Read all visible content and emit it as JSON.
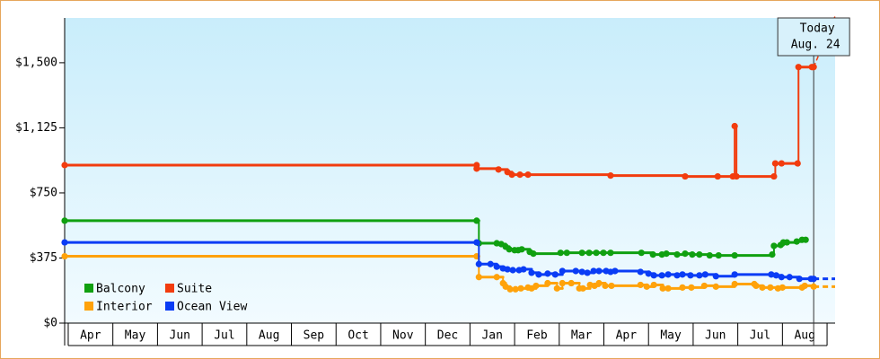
{
  "chart_data": {
    "type": "step",
    "xlim": [
      -0.08,
      17.18
    ],
    "ylim": [
      0,
      1758
    ],
    "yticks": [
      {
        "value": 0,
        "label": "$0"
      },
      {
        "value": 375,
        "label": "$375"
      },
      {
        "value": 750,
        "label": "$750"
      },
      {
        "value": 1125,
        "label": "$1,125"
      },
      {
        "value": 1500,
        "label": "$1,500"
      }
    ],
    "xticks": [
      {
        "value": 0.5,
        "label": "Apr"
      },
      {
        "value": 1.5,
        "label": "May"
      },
      {
        "value": 2.5,
        "label": "Jun"
      },
      {
        "value": 3.5,
        "label": "Jul"
      },
      {
        "value": 4.5,
        "label": "Aug"
      },
      {
        "value": 5.5,
        "label": "Sep"
      },
      {
        "value": 6.5,
        "label": "Oct"
      },
      {
        "value": 7.5,
        "label": "Nov"
      },
      {
        "value": 8.5,
        "label": "Dec"
      },
      {
        "value": 9.5,
        "label": "Jan"
      },
      {
        "value": 10.5,
        "label": "Feb"
      },
      {
        "value": 11.5,
        "label": "Mar"
      },
      {
        "value": 12.5,
        "label": "Apr"
      },
      {
        "value": 13.5,
        "label": "May"
      },
      {
        "value": 14.5,
        "label": "Jun"
      },
      {
        "value": 15.5,
        "label": "Jul"
      },
      {
        "value": 16.5,
        "label": "Aug"
      }
    ],
    "today": {
      "label": "Today",
      "date": "Aug. 24"
    },
    "series": [
      {
        "name": "Balcony",
        "color": "#10a010",
        "projection": "none",
        "x": [
          -0.08,
          9.15,
          9.2,
          9.6,
          9.7,
          9.8,
          9.88,
          10.0,
          10.08,
          10.16,
          10.34,
          10.42,
          11.03,
          11.17,
          11.51,
          11.67,
          11.83,
          11.99,
          12.15,
          12.84,
          13.1,
          13.3,
          13.4,
          13.64,
          13.82,
          13.98,
          14.14,
          14.37,
          14.57,
          14.93,
          15.77,
          15.81,
          15.96,
          16.02,
          16.1,
          16.32,
          16.44,
          16.52
        ],
        "values": [
          590,
          590,
          460,
          460,
          455,
          440,
          425,
          420,
          420,
          425,
          410,
          400,
          405,
          405,
          405,
          405,
          405,
          405,
          405,
          405,
          395,
          395,
          400,
          395,
          400,
          395,
          395,
          390,
          390,
          390,
          395,
          445,
          450,
          465,
          465,
          470,
          480,
          480
        ]
      },
      {
        "name": "Suite",
        "color": "#f23c0e",
        "projection": "rising",
        "x": [
          -0.08,
          9.15,
          9.15,
          9.64,
          9.84,
          9.94,
          10.12,
          10.3,
          12.15,
          13.82,
          14.55,
          14.89,
          14.93,
          14.97,
          15.81,
          15.84,
          15.98,
          16.34,
          16.36,
          16.66,
          16.7
        ],
        "values": [
          910,
          910,
          890,
          885,
          870,
          855,
          855,
          855,
          850,
          845,
          845,
          845,
          1135,
          845,
          845,
          920,
          920,
          920,
          1475,
          1475,
          1475
        ]
      },
      {
        "name": "Interior",
        "color": "#ffa20a",
        "projection": "level",
        "x": [
          -0.08,
          9.15,
          9.2,
          9.6,
          9.74,
          9.8,
          9.9,
          10.02,
          10.14,
          10.3,
          10.38,
          10.48,
          10.74,
          10.95,
          11.07,
          11.27,
          11.45,
          11.53,
          11.69,
          11.79,
          11.89,
          12.03,
          12.17,
          12.82,
          12.96,
          13.12,
          13.32,
          13.44,
          13.76,
          13.96,
          14.25,
          14.51,
          14.93,
          15.37,
          15.41,
          15.55,
          15.73,
          15.9,
          16.0,
          16.44,
          16.5,
          16.7
        ],
        "values": [
          385,
          385,
          265,
          265,
          230,
          210,
          195,
          195,
          200,
          205,
          200,
          215,
          230,
          200,
          230,
          230,
          200,
          200,
          220,
          215,
          230,
          215,
          215,
          220,
          210,
          220,
          200,
          200,
          205,
          205,
          215,
          210,
          225,
          225,
          215,
          205,
          205,
          200,
          205,
          205,
          215,
          210
        ]
      },
      {
        "name": "Ocean View",
        "color": "#0a3cf5",
        "projection": "level",
        "x": [
          -0.08,
          9.15,
          9.2,
          9.46,
          9.6,
          9.74,
          9.84,
          9.96,
          10.1,
          10.2,
          10.38,
          10.54,
          10.74,
          10.91,
          11.07,
          11.37,
          11.51,
          11.63,
          11.77,
          11.89,
          12.05,
          12.15,
          12.25,
          12.82,
          13.0,
          13.12,
          13.3,
          13.44,
          13.64,
          13.76,
          13.94,
          14.14,
          14.27,
          14.51,
          14.93,
          15.75,
          15.86,
          15.98,
          16.16,
          16.38,
          16.64,
          16.7
        ],
        "values": [
          465,
          465,
          340,
          340,
          325,
          315,
          310,
          305,
          305,
          310,
          290,
          280,
          285,
          280,
          300,
          300,
          295,
          290,
          300,
          300,
          300,
          295,
          300,
          295,
          285,
          275,
          275,
          280,
          275,
          280,
          275,
          275,
          280,
          270,
          280,
          280,
          275,
          265,
          265,
          255,
          255,
          255
        ]
      }
    ]
  }
}
